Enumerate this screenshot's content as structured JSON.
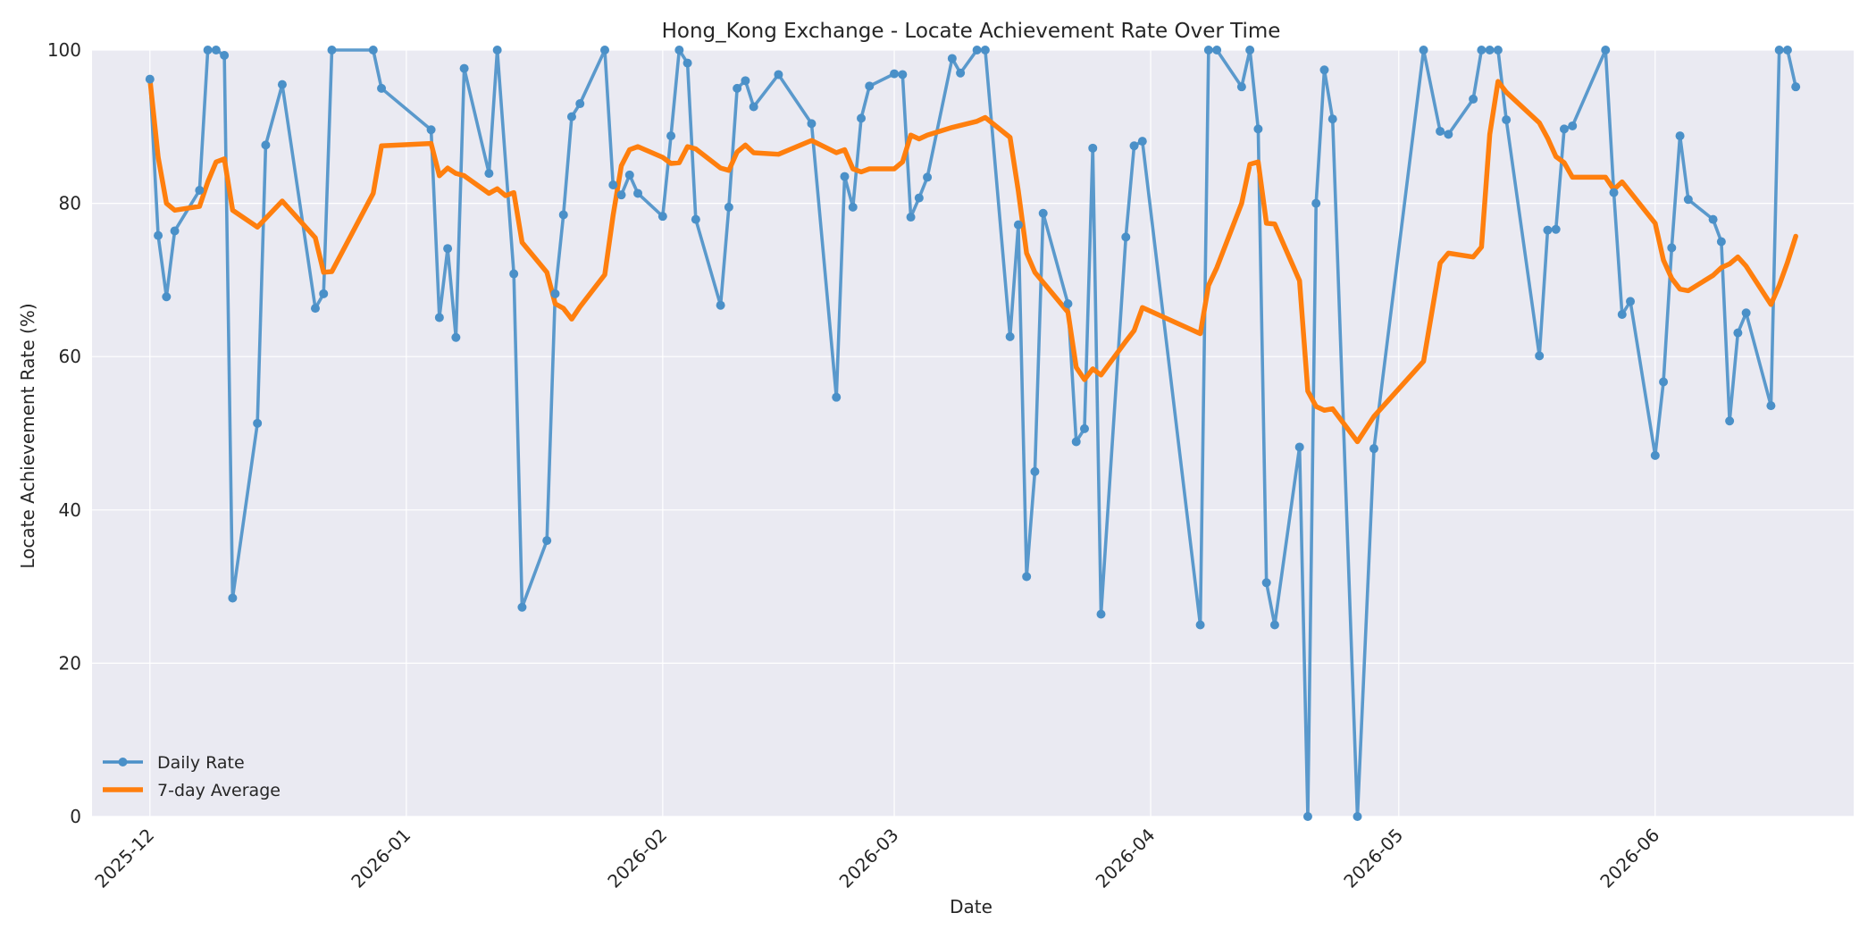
{
  "chart_data": {
    "type": "line",
    "title": "Hong_Kong Exchange - Locate Achievement Rate Over Time",
    "xlabel": "Date",
    "ylabel": "Locate Achievement Rate (%)",
    "ylim": [
      0,
      100
    ],
    "xlim": [
      "2025-11-24",
      "2026-06-25"
    ],
    "y_ticks": [
      0,
      20,
      40,
      60,
      80,
      100
    ],
    "x_ticks": [
      {
        "date": "2025-12-01",
        "label": "2025-12"
      },
      {
        "date": "2026-01-01",
        "label": "2026-01"
      },
      {
        "date": "2026-02-01",
        "label": "2026-02"
      },
      {
        "date": "2026-03-01",
        "label": "2026-03"
      },
      {
        "date": "2026-04-01",
        "label": "2026-04"
      },
      {
        "date": "2026-05-01",
        "label": "2026-05"
      },
      {
        "date": "2026-06-01",
        "label": "2026-06"
      }
    ],
    "grid": true,
    "legend_position": "lower-left",
    "series": [
      {
        "name": "Daily Rate",
        "color": "#4a90c8",
        "marker": "circle",
        "points": [
          [
            "2025-12-01",
            96.2
          ],
          [
            "2025-12-02",
            75.8
          ],
          [
            "2025-12-03",
            67.8
          ],
          [
            "2025-12-04",
            76.4
          ],
          [
            "2025-12-07",
            81.7
          ],
          [
            "2025-12-08",
            100.0
          ],
          [
            "2025-12-09",
            100.0
          ],
          [
            "2025-12-10",
            99.3
          ],
          [
            "2025-12-11",
            28.5
          ],
          [
            "2025-12-14",
            51.3
          ],
          [
            "2025-12-15",
            87.6
          ],
          [
            "2025-12-17",
            95.5
          ],
          [
            "2025-12-21",
            66.3
          ],
          [
            "2025-12-22",
            68.2
          ],
          [
            "2025-12-23",
            100.0
          ],
          [
            "2025-12-28",
            100.0
          ],
          [
            "2025-12-29",
            95.0
          ],
          [
            "2026-01-04",
            89.6
          ],
          [
            "2026-01-05",
            65.1
          ],
          [
            "2026-01-06",
            74.1
          ],
          [
            "2026-01-07",
            62.5
          ],
          [
            "2026-01-08",
            97.6
          ],
          [
            "2026-01-11",
            83.9
          ],
          [
            "2026-01-12",
            100.0
          ],
          [
            "2026-01-14",
            70.8
          ],
          [
            "2026-01-15",
            27.3
          ],
          [
            "2026-01-18",
            36.0
          ],
          [
            "2026-01-19",
            68.2
          ],
          [
            "2026-01-20",
            78.5
          ],
          [
            "2026-01-21",
            91.3
          ],
          [
            "2026-01-22",
            93.0
          ],
          [
            "2026-01-25",
            100.0
          ],
          [
            "2026-01-26",
            82.4
          ],
          [
            "2026-01-27",
            81.1
          ],
          [
            "2026-01-28",
            83.7
          ],
          [
            "2026-01-29",
            81.3
          ],
          [
            "2026-02-01",
            78.3
          ],
          [
            "2026-02-02",
            88.8
          ],
          [
            "2026-02-03",
            100.0
          ],
          [
            "2026-02-04",
            98.3
          ],
          [
            "2026-02-05",
            77.9
          ],
          [
            "2026-02-08",
            66.7
          ],
          [
            "2026-02-09",
            79.5
          ],
          [
            "2026-02-10",
            95.0
          ],
          [
            "2026-02-11",
            96.0
          ],
          [
            "2026-02-12",
            92.6
          ],
          [
            "2026-02-15",
            96.8
          ],
          [
            "2026-02-19",
            90.4
          ],
          [
            "2026-02-22",
            54.7
          ],
          [
            "2026-02-23",
            83.5
          ],
          [
            "2026-02-24",
            79.5
          ],
          [
            "2026-02-25",
            91.1
          ],
          [
            "2026-02-26",
            95.3
          ],
          [
            "2026-03-01",
            96.9
          ],
          [
            "2026-03-02",
            96.8
          ],
          [
            "2026-03-03",
            78.2
          ],
          [
            "2026-03-04",
            80.7
          ],
          [
            "2026-03-05",
            83.4
          ],
          [
            "2026-03-08",
            98.9
          ],
          [
            "2026-03-09",
            97.0
          ],
          [
            "2026-03-11",
            100.0
          ],
          [
            "2026-03-12",
            100.0
          ],
          [
            "2026-03-15",
            62.6
          ],
          [
            "2026-03-16",
            77.2
          ],
          [
            "2026-03-17",
            31.3
          ],
          [
            "2026-03-18",
            45.0
          ],
          [
            "2026-03-19",
            78.7
          ],
          [
            "2026-03-22",
            66.9
          ],
          [
            "2026-03-23",
            48.9
          ],
          [
            "2026-03-24",
            50.6
          ],
          [
            "2026-03-25",
            87.2
          ],
          [
            "2026-03-26",
            26.4
          ],
          [
            "2026-03-29",
            75.6
          ],
          [
            "2026-03-30",
            87.5
          ],
          [
            "2026-03-31",
            88.1
          ],
          [
            "2026-04-07",
            25.0
          ],
          [
            "2026-04-08",
            100.0
          ],
          [
            "2026-04-09",
            100.0
          ],
          [
            "2026-04-12",
            95.2
          ],
          [
            "2026-04-13",
            100.0
          ],
          [
            "2026-04-14",
            89.7
          ],
          [
            "2026-04-15",
            30.5
          ],
          [
            "2026-04-16",
            25.0
          ],
          [
            "2026-04-19",
            48.2
          ],
          [
            "2026-04-20",
            0.0
          ],
          [
            "2026-04-21",
            80.0
          ],
          [
            "2026-04-22",
            97.4
          ],
          [
            "2026-04-23",
            91.0
          ],
          [
            "2026-04-26",
            0.0
          ],
          [
            "2026-04-28",
            48.0
          ],
          [
            "2026-05-04",
            100.0
          ],
          [
            "2026-05-06",
            89.4
          ],
          [
            "2026-05-07",
            89.0
          ],
          [
            "2026-05-10",
            93.6
          ],
          [
            "2026-05-11",
            100.0
          ],
          [
            "2026-05-12",
            100.0
          ],
          [
            "2026-05-13",
            100.0
          ],
          [
            "2026-05-14",
            90.9
          ],
          [
            "2026-05-18",
            60.1
          ],
          [
            "2026-05-19",
            76.5
          ],
          [
            "2026-05-20",
            76.6
          ],
          [
            "2026-05-21",
            89.7
          ],
          [
            "2026-05-22",
            90.1
          ],
          [
            "2026-05-26",
            100.0
          ],
          [
            "2026-05-27",
            81.4
          ],
          [
            "2026-05-28",
            65.5
          ],
          [
            "2026-05-29",
            67.2
          ],
          [
            "2026-06-01",
            47.1
          ],
          [
            "2026-06-02",
            56.7
          ],
          [
            "2026-06-03",
            74.2
          ],
          [
            "2026-06-04",
            88.8
          ],
          [
            "2026-06-05",
            80.5
          ],
          [
            "2026-06-08",
            77.9
          ],
          [
            "2026-06-09",
            75.0
          ],
          [
            "2026-06-10",
            51.6
          ],
          [
            "2026-06-11",
            63.1
          ],
          [
            "2026-06-12",
            65.7
          ],
          [
            "2026-06-15",
            53.6
          ],
          [
            "2026-06-16",
            100.0
          ],
          [
            "2026-06-17",
            100.0
          ],
          [
            "2026-06-18",
            95.2
          ]
        ]
      },
      {
        "name": "7-day Average",
        "color": "#ff7f0e",
        "marker": "none",
        "points": [
          [
            "2025-12-01",
            96.2
          ],
          [
            "2025-12-02",
            86.0
          ],
          [
            "2025-12-03",
            80.0
          ],
          [
            "2025-12-04",
            79.1
          ],
          [
            "2025-12-07",
            79.6
          ],
          [
            "2025-12-08",
            82.8
          ],
          [
            "2025-12-09",
            85.4
          ],
          [
            "2025-12-10",
            85.8
          ],
          [
            "2025-12-11",
            79.1
          ],
          [
            "2025-12-14",
            76.9
          ],
          [
            "2025-12-17",
            80.3
          ],
          [
            "2025-12-21",
            75.5
          ],
          [
            "2025-12-22",
            71.0
          ],
          [
            "2025-12-23",
            71.1
          ],
          [
            "2025-12-28",
            81.3
          ],
          [
            "2025-12-29",
            87.5
          ],
          [
            "2026-01-04",
            87.8
          ],
          [
            "2026-01-05",
            83.6
          ],
          [
            "2026-01-06",
            84.6
          ],
          [
            "2026-01-07",
            83.9
          ],
          [
            "2026-01-08",
            83.6
          ],
          [
            "2026-01-11",
            81.3
          ],
          [
            "2026-01-12",
            81.9
          ],
          [
            "2026-01-13",
            81.0
          ],
          [
            "2026-01-14",
            81.4
          ],
          [
            "2026-01-15",
            74.9
          ],
          [
            "2026-01-18",
            71.0
          ],
          [
            "2026-01-19",
            66.9
          ],
          [
            "2026-01-20",
            66.3
          ],
          [
            "2026-01-21",
            64.9
          ],
          [
            "2026-01-22",
            66.5
          ],
          [
            "2026-01-25",
            70.7
          ],
          [
            "2026-01-26",
            78.4
          ],
          [
            "2026-01-27",
            84.9
          ],
          [
            "2026-01-28",
            87.0
          ],
          [
            "2026-01-29",
            87.4
          ],
          [
            "2026-02-01",
            86.0
          ],
          [
            "2026-02-02",
            85.2
          ],
          [
            "2026-02-03",
            85.3
          ],
          [
            "2026-02-04",
            87.4
          ],
          [
            "2026-02-05",
            87.1
          ],
          [
            "2026-02-08",
            84.6
          ],
          [
            "2026-02-09",
            84.3
          ],
          [
            "2026-02-10",
            86.7
          ],
          [
            "2026-02-11",
            87.6
          ],
          [
            "2026-02-12",
            86.6
          ],
          [
            "2026-02-15",
            86.4
          ],
          [
            "2026-02-19",
            88.2
          ],
          [
            "2026-02-22",
            86.6
          ],
          [
            "2026-02-23",
            87.0
          ],
          [
            "2026-02-24",
            84.5
          ],
          [
            "2026-02-25",
            84.1
          ],
          [
            "2026-02-26",
            84.5
          ],
          [
            "2026-03-01",
            84.5
          ],
          [
            "2026-03-02",
            85.4
          ],
          [
            "2026-03-03",
            88.9
          ],
          [
            "2026-03-04",
            88.4
          ],
          [
            "2026-03-05",
            88.9
          ],
          [
            "2026-03-08",
            89.9
          ],
          [
            "2026-03-11",
            90.7
          ],
          [
            "2026-03-12",
            91.2
          ],
          [
            "2026-03-15",
            88.6
          ],
          [
            "2026-03-16",
            81.6
          ],
          [
            "2026-03-17",
            73.5
          ],
          [
            "2026-03-18",
            71.0
          ],
          [
            "2026-03-22",
            65.8
          ],
          [
            "2026-03-23",
            58.6
          ],
          [
            "2026-03-24",
            57.0
          ],
          [
            "2026-03-25",
            58.4
          ],
          [
            "2026-03-26",
            57.6
          ],
          [
            "2026-03-29",
            62.0
          ],
          [
            "2026-03-30",
            63.4
          ],
          [
            "2026-03-31",
            66.4
          ],
          [
            "2026-04-07",
            63.0
          ],
          [
            "2026-04-08",
            69.3
          ],
          [
            "2026-04-09",
            71.6
          ],
          [
            "2026-04-12",
            80.0
          ],
          [
            "2026-04-13",
            85.1
          ],
          [
            "2026-04-14",
            85.4
          ],
          [
            "2026-04-15",
            77.4
          ],
          [
            "2026-04-16",
            77.3
          ],
          [
            "2026-04-19",
            69.9
          ],
          [
            "2026-04-20",
            55.5
          ],
          [
            "2026-04-21",
            53.5
          ],
          [
            "2026-04-22",
            53.0
          ],
          [
            "2026-04-23",
            53.2
          ],
          [
            "2026-04-26",
            48.9
          ],
          [
            "2026-04-28",
            52.2
          ],
          [
            "2026-05-04",
            59.4
          ],
          [
            "2026-05-06",
            72.2
          ],
          [
            "2026-05-07",
            73.5
          ],
          [
            "2026-05-10",
            73.0
          ],
          [
            "2026-05-11",
            74.3
          ],
          [
            "2026-05-12",
            89.0
          ],
          [
            "2026-05-13",
            95.9
          ],
          [
            "2026-05-14",
            94.5
          ],
          [
            "2026-05-18",
            90.5
          ],
          [
            "2026-05-19",
            88.5
          ],
          [
            "2026-05-20",
            86.1
          ],
          [
            "2026-05-21",
            85.3
          ],
          [
            "2026-05-22",
            83.4
          ],
          [
            "2026-05-26",
            83.4
          ],
          [
            "2026-05-27",
            81.8
          ],
          [
            "2026-05-28",
            82.8
          ],
          [
            "2026-06-01",
            77.4
          ],
          [
            "2026-06-02",
            72.6
          ],
          [
            "2026-06-03",
            70.2
          ],
          [
            "2026-06-04",
            68.8
          ],
          [
            "2026-06-05",
            68.6
          ],
          [
            "2026-06-08",
            70.6
          ],
          [
            "2026-06-09",
            71.6
          ],
          [
            "2026-06-10",
            72.1
          ],
          [
            "2026-06-11",
            73.0
          ],
          [
            "2026-06-12",
            71.8
          ],
          [
            "2026-06-15",
            66.8
          ],
          [
            "2026-06-16",
            69.3
          ],
          [
            "2026-06-17",
            72.3
          ],
          [
            "2026-06-18",
            75.7
          ]
        ]
      }
    ]
  },
  "colors": {
    "plot_background": "#eaeaf2",
    "grid": "#ffffff",
    "daily_rate": "#4a90c8",
    "moving_average": "#ff7f0e"
  }
}
